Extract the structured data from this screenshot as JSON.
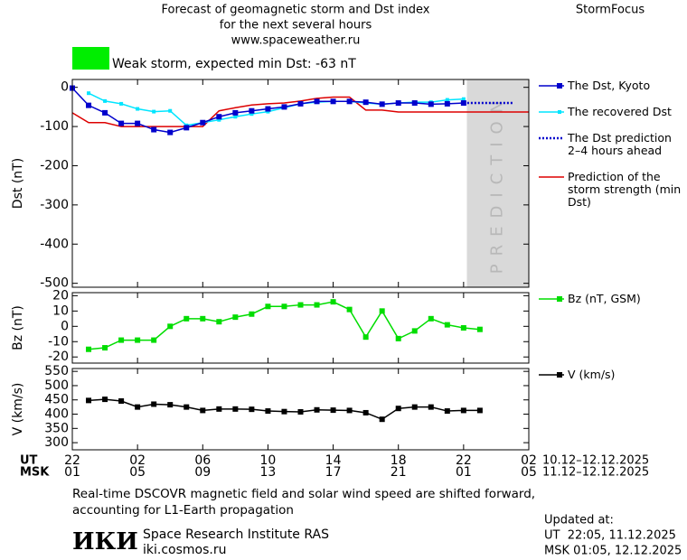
{
  "header": {
    "title_lines": [
      "Forecast of geomagnetic storm and Dst index",
      "for the next several hours",
      "www.spaceweather.ru"
    ],
    "brand": "StormFocus",
    "status": "Weak storm, expected min Dst: -63 nT",
    "status_color": "#00ee00"
  },
  "chart_data": [
    {
      "type": "line",
      "y_label": "Dst (nT)",
      "xlim": [
        0,
        28
      ],
      "ylim": [
        -510,
        20
      ],
      "yticks": [
        0,
        -100,
        -200,
        -300,
        -400,
        -500
      ],
      "xticks": [
        {
          "value": 0,
          "label": "22"
        },
        {
          "value": 4,
          "label": "02"
        },
        {
          "value": 8,
          "label": "06"
        },
        {
          "value": 12,
          "label": "10"
        },
        {
          "value": 16,
          "label": "14"
        },
        {
          "value": 20,
          "label": "18"
        },
        {
          "value": 24,
          "label": "22"
        },
        {
          "value": 28,
          "label": "02"
        }
      ],
      "prediction_region": {
        "x": [
          24.2,
          28
        ],
        "label": "PREDICTION",
        "color": "#d9d9d9"
      },
      "series": [
        {
          "name": "Prediction of the storm strength (min Dst)",
          "color": "#dd0000",
          "marker": "none",
          "dash": false,
          "x": [
            0,
            1,
            2,
            3,
            4,
            5,
            6,
            7,
            8,
            9,
            10,
            11,
            12,
            13,
            14,
            15,
            16,
            17,
            18,
            19,
            20,
            21,
            22,
            23,
            24,
            25,
            26,
            27,
            28
          ],
          "values": [
            -65,
            -90,
            -90,
            -100,
            -100,
            -100,
            -100,
            -100,
            -100,
            -60,
            -52,
            -45,
            -42,
            -40,
            -35,
            -28,
            -25,
            -25,
            -58,
            -58,
            -63,
            -63,
            -63,
            -63,
            -63,
            -63,
            -63,
            -63,
            -63
          ]
        },
        {
          "name": "The recovered Dst",
          "color": "#00e5ff",
          "marker": "square",
          "dash": false,
          "x": [
            1,
            2,
            3,
            4,
            5,
            6,
            7,
            8,
            9,
            10,
            11,
            12,
            13,
            14,
            15,
            16,
            17,
            18,
            19,
            20,
            21,
            22,
            23,
            24
          ],
          "values": [
            -15,
            -35,
            -42,
            -55,
            -62,
            -60,
            -97,
            -90,
            -83,
            -75,
            -68,
            -62,
            -52,
            -42,
            -38,
            -36,
            -36,
            -40,
            -43,
            -40,
            -38,
            -38,
            -32,
            -30
          ]
        },
        {
          "name": "The Dst, Kyoto",
          "color": "#0000cc",
          "marker": "square",
          "dash": false,
          "x": [
            0,
            1,
            2,
            3,
            4,
            5,
            6,
            7,
            8,
            9,
            10,
            11,
            12,
            13,
            14,
            15,
            16,
            17,
            18,
            19,
            20,
            21,
            22,
            23,
            24
          ],
          "values": [
            -2,
            -46,
            -65,
            -92,
            -92,
            -108,
            -115,
            -103,
            -90,
            -75,
            -65,
            -60,
            -55,
            -50,
            -42,
            -36,
            -36,
            -36,
            -38,
            -43,
            -40,
            -40,
            -43,
            -42,
            -40
          ]
        },
        {
          "name": "The Dst prediction 2–4 hours ahead",
          "color": "#0000cc",
          "marker": "none",
          "dash": true,
          "x": [
            24,
            25,
            26,
            27
          ],
          "values": [
            -40,
            -40,
            -40,
            -40
          ]
        }
      ]
    },
    {
      "type": "line",
      "y_label": "Bz (nT)",
      "xlim": [
        0,
        28
      ],
      "ylim": [
        -24,
        22
      ],
      "yticks": [
        20,
        10,
        0,
        -10,
        -20
      ],
      "xticks": [
        0,
        4,
        8,
        12,
        16,
        20,
        24,
        28
      ],
      "series": [
        {
          "name": "Bz (nT, GSM)",
          "color": "#00dd00",
          "marker": "square",
          "dash": false,
          "x": [
            1,
            2,
            3,
            4,
            5,
            6,
            7,
            8,
            9,
            10,
            11,
            12,
            13,
            14,
            15,
            16,
            17,
            18,
            19,
            20,
            21,
            22,
            23,
            24,
            25
          ],
          "values": [
            -15,
            -14,
            -9,
            -9,
            -9,
            0,
            5,
            5,
            3,
            6,
            8,
            13,
            13,
            14,
            14,
            16,
            11,
            -7,
            10,
            -8,
            -3,
            5,
            1,
            -1,
            -2
          ]
        }
      ]
    },
    {
      "type": "line",
      "y_label": "V (km/s)",
      "xlim": [
        0,
        28
      ],
      "ylim": [
        275,
        560
      ],
      "yticks": [
        300,
        350,
        400,
        450,
        500,
        550
      ],
      "xticks": [
        {
          "value": 0,
          "label": "22"
        },
        {
          "value": 4,
          "label": "02"
        },
        {
          "value": 8,
          "label": "06"
        },
        {
          "value": 12,
          "label": "10"
        },
        {
          "value": 16,
          "label": "14"
        },
        {
          "value": 20,
          "label": "18"
        },
        {
          "value": 24,
          "label": "22"
        },
        {
          "value": 28,
          "label": "02"
        }
      ],
      "xticks_msk": [
        {
          "value": 0,
          "label": "01"
        },
        {
          "value": 4,
          "label": "05"
        },
        {
          "value": 8,
          "label": "09"
        },
        {
          "value": 12,
          "label": "13"
        },
        {
          "value": 16,
          "label": "17"
        },
        {
          "value": 20,
          "label": "21"
        },
        {
          "value": 24,
          "label": "01"
        },
        {
          "value": 28,
          "label": "05"
        }
      ],
      "x_label": "UT",
      "x2_label": "MSK",
      "x_range_label": "10.12–12.12.2025",
      "x2_range_label": "11.12–12.12.2025",
      "series": [
        {
          "name": "V (km/s)",
          "color": "#000000",
          "marker": "square",
          "dash": false,
          "x": [
            1,
            2,
            3,
            4,
            5,
            6,
            7,
            8,
            9,
            10,
            11,
            12,
            13,
            14,
            15,
            16,
            17,
            18,
            19,
            20,
            21,
            22,
            23,
            24,
            25
          ],
          "values": [
            448,
            452,
            446,
            425,
            435,
            433,
            425,
            413,
            418,
            418,
            417,
            411,
            409,
            408,
            415,
            414,
            413,
            405,
            382,
            420,
            425,
            425,
            411,
            413,
            413
          ]
        }
      ]
    }
  ],
  "footer": {
    "note": "Real-time DSCOVR magnetic field and solar wind speed are shifted forward, accounting for L1-Earth propagation",
    "logo": "ИКИ",
    "institute": "Space Research Institute RAS",
    "url": "iki.cosmos.ru",
    "updated": "Updated at:",
    "updated_ut": "UT  22:05, 11.12.2025",
    "updated_msk": "MSK 01:05, 12.12.2025"
  }
}
